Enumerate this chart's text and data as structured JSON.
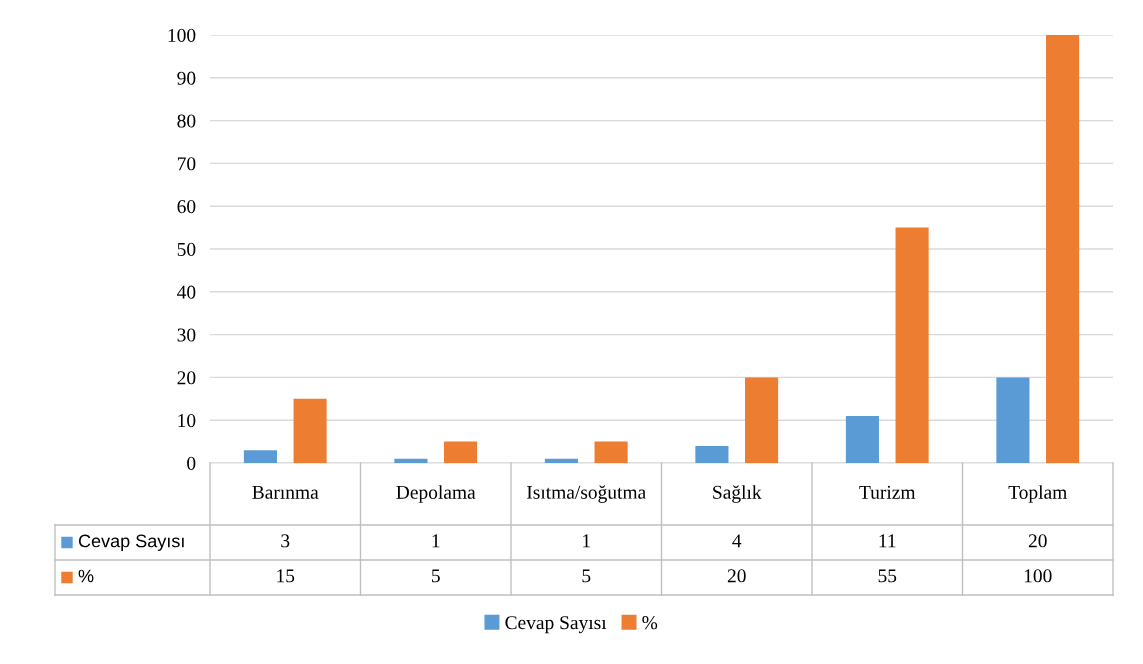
{
  "chart_data": {
    "type": "bar",
    "categories": [
      "Barınma",
      "Depolama",
      "Isıtma/soğutma",
      "Sağlık",
      "Turizm",
      "Toplam"
    ],
    "series": [
      {
        "name": "Cevap Sayısı",
        "color": "#5b9bd5",
        "values": [
          3,
          1,
          1,
          4,
          11,
          20
        ]
      },
      {
        "name": "%",
        "color": "#ed7d31",
        "values": [
          15,
          5,
          5,
          20,
          55,
          100
        ]
      }
    ],
    "ylim": [
      0,
      100
    ],
    "yticks": [
      0,
      10,
      20,
      30,
      40,
      50,
      60,
      70,
      80,
      90,
      100
    ],
    "grid": "y",
    "legend": "bottom",
    "data_labels": true
  }
}
